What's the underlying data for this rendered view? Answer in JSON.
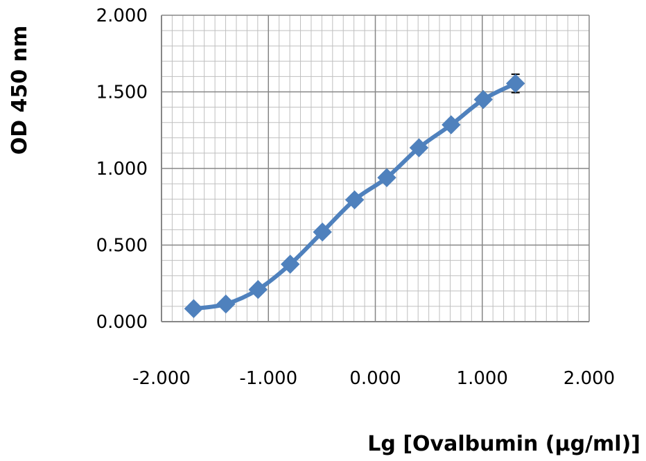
{
  "chart_data": {
    "type": "scatter",
    "title": "",
    "xlabel": "Lg [Ovalbumin (µg/ml)]",
    "ylabel": "OD 450 nm",
    "xlim": [
      -2.0,
      2.0
    ],
    "ylim": [
      0.0,
      2.0
    ],
    "x_major_ticks": [
      -2.0,
      -1.0,
      0.0,
      1.0,
      2.0
    ],
    "y_major_ticks": [
      0.0,
      0.5,
      1.0,
      1.5,
      2.0
    ],
    "x_tick_labels": [
      "-2.000",
      "-1.000",
      "0.000",
      "1.000",
      "2.000"
    ],
    "y_tick_labels": [
      "0.000",
      "0.500",
      "1.000",
      "1.500",
      "2.000"
    ],
    "grid": true,
    "legend": "none",
    "marker": "diamond",
    "line": "smooth",
    "series": [
      {
        "color": "#4f81bd",
        "x": [
          -1.699,
          -1.398,
          -1.097,
          -0.796,
          -0.495,
          -0.194,
          0.107,
          0.408,
          0.709,
          1.01,
          1.311
        ],
        "y": [
          0.085,
          0.115,
          0.21,
          0.375,
          0.585,
          0.795,
          0.94,
          1.135,
          1.285,
          1.45,
          1.555
        ],
        "error": [
          0.0,
          0.0,
          0.0,
          0.0,
          0.0,
          0.0,
          0.0,
          0.0,
          0.0,
          0.03,
          0.06
        ]
      }
    ]
  }
}
